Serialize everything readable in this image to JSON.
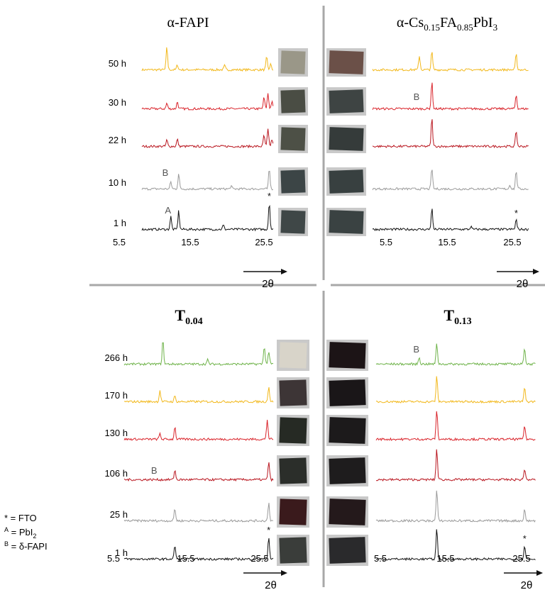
{
  "panels": [
    {
      "id": "fapi",
      "title": "α-FAPI",
      "title_sub": "",
      "bold": false,
      "labels": [
        "50 h",
        "30 h",
        "22 h",
        "10 h",
        "1 h"
      ],
      "colors": [
        "#f2b81b",
        "#d9232a",
        "#b9161f",
        "#9a9a9a",
        "#111111"
      ],
      "swatches": [
        "#9a9788",
        "#4a4d44",
        "#4d5046",
        "#3c4546",
        "#3f4747"
      ],
      "xticks": [
        "5.5",
        "15.5",
        "25.5"
      ],
      "axis_label": "2θ",
      "markers": [
        {
          "row": 3,
          "text": "B"
        },
        {
          "row": 4,
          "text": "A"
        },
        {
          "row": 4,
          "text": "*"
        }
      ]
    },
    {
      "id": "cs",
      "title_pre": "α-Cs",
      "title_s1": "0.15",
      "title_mid": "FA",
      "title_s2": "0.85",
      "title_post": "PbI",
      "title_s3": "3",
      "labels": [
        "",
        "",
        "",
        "",
        ""
      ],
      "colors": [
        "#f2b81b",
        "#d9232a",
        "#b9161f",
        "#9a9a9a",
        "#111111"
      ],
      "swatches": [
        "#6b5048",
        "#3e4443",
        "#353b3a",
        "#384040",
        "#3a4242"
      ],
      "xticks": [
        "5.5",
        "15.5",
        "25.5"
      ],
      "axis_label": "2θ",
      "markers": [
        {
          "row": 1,
          "text": "B"
        },
        {
          "row": 4,
          "text": "*"
        }
      ]
    },
    {
      "id": "t004",
      "title": "T",
      "title_sub": "0.04",
      "labels": [
        "266 h",
        "170 h",
        "130 h",
        "106 h",
        "25 h",
        "1 h"
      ],
      "colors": [
        "#6fb34a",
        "#f2b81b",
        "#d9232a",
        "#b9161f",
        "#9a9a9a",
        "#111111"
      ],
      "swatches": [
        "#d8d4c9",
        "#3d3536",
        "#262a24",
        "#2b2e2a",
        "#3a1a1c",
        "#3a3d3a"
      ],
      "xticks": [
        "5.5",
        "15.5",
        "25.5"
      ],
      "axis_label": "2θ",
      "markers": [
        {
          "row": 3,
          "text": "B"
        },
        {
          "row": 5,
          "text": "*"
        }
      ]
    },
    {
      "id": "t013",
      "title": "T",
      "title_sub": "0.13",
      "labels": [
        "",
        "",
        "",
        "",
        "",
        ""
      ],
      "colors": [
        "#6fb34a",
        "#f2b81b",
        "#d9232a",
        "#b9161f",
        "#9a9a9a",
        "#111111"
      ],
      "swatches": [
        "#1c1416",
        "#1a1618",
        "#1c1a1b",
        "#1e1c1d",
        "#24191b",
        "#2a2a2c"
      ],
      "xticks": [
        "5.5",
        "15.5",
        "25.5"
      ],
      "axis_label": "2θ",
      "markers": [
        {
          "row": 0,
          "text": "B"
        },
        {
          "row": 5,
          "text": "*"
        }
      ]
    }
  ],
  "legend": {
    "line1": "* = FTO",
    "line2_sup": "A",
    "line2": " = PbI",
    "line2_sub": "2",
    "line3_sup": "B",
    "line3": " = δ-FAPI"
  }
}
